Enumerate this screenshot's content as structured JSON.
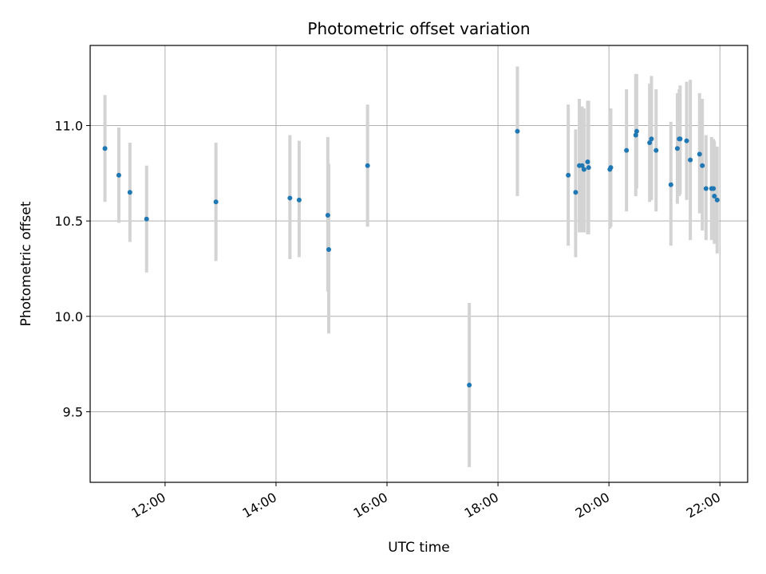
{
  "chart_data": {
    "type": "scatter",
    "title": "Photometric offset variation",
    "xlabel": "UTC time",
    "ylabel": "Photometric offset",
    "x_unit": "UTC hours",
    "xlim": [
      10.65,
      22.5
    ],
    "ylim": [
      9.13,
      11.42
    ],
    "x_ticks": [
      {
        "value": 12,
        "label": "12:00"
      },
      {
        "value": 14,
        "label": "14:00"
      },
      {
        "value": 16,
        "label": "16:00"
      },
      {
        "value": 18,
        "label": "18:00"
      },
      {
        "value": 20,
        "label": "20:00"
      },
      {
        "value": 22,
        "label": "22:00"
      }
    ],
    "y_ticks": [
      {
        "value": 9.5,
        "label": "9.5"
      },
      {
        "value": 10.0,
        "label": "10.0"
      },
      {
        "value": 10.5,
        "label": "10.5"
      },
      {
        "value": 11.0,
        "label": "11.0"
      }
    ],
    "grid": true,
    "colors": {
      "points": "#1f77b4",
      "error_bars": "#d3d3d3",
      "grid": "#b0b0b0"
    },
    "points": [
      {
        "time": "10:55",
        "y": 10.88,
        "low": 10.6,
        "high": 11.16
      },
      {
        "time": "11:10",
        "y": 10.74,
        "low": 10.49,
        "high": 10.99
      },
      {
        "time": "11:22",
        "y": 10.65,
        "low": 10.39,
        "high": 10.91
      },
      {
        "time": "11:40",
        "y": 10.51,
        "low": 10.23,
        "high": 10.79
      },
      {
        "time": "12:55",
        "y": 10.6,
        "low": 10.29,
        "high": 10.91
      },
      {
        "time": "14:15",
        "y": 10.62,
        "low": 10.3,
        "high": 10.95
      },
      {
        "time": "14:25",
        "y": 10.61,
        "low": 10.31,
        "high": 10.92
      },
      {
        "time": "14:56",
        "y": 10.53,
        "low": 10.13,
        "high": 10.94
      },
      {
        "time": "14:57",
        "y": 10.35,
        "low": 9.91,
        "high": 10.8
      },
      {
        "time": "15:39",
        "y": 10.79,
        "low": 10.47,
        "high": 11.11
      },
      {
        "time": "17:29",
        "y": 9.64,
        "low": 9.21,
        "high": 10.07
      },
      {
        "time": "18:21",
        "y": 10.97,
        "low": 10.63,
        "high": 11.31
      },
      {
        "time": "19:16",
        "y": 10.74,
        "low": 10.37,
        "high": 11.11
      },
      {
        "time": "19:24",
        "y": 10.65,
        "low": 10.31,
        "high": 10.98
      },
      {
        "time": "19:28",
        "y": 10.79,
        "low": 10.44,
        "high": 11.14
      },
      {
        "time": "19:31",
        "y": 10.79,
        "low": 10.44,
        "high": 11.1
      },
      {
        "time": "19:33",
        "y": 10.77,
        "low": 10.44,
        "high": 11.09
      },
      {
        "time": "19:37",
        "y": 10.81,
        "low": 10.43,
        "high": 11.13
      },
      {
        "time": "19:38",
        "y": 10.78,
        "low": 10.43,
        "high": 11.13
      },
      {
        "time": "20:01",
        "y": 10.77,
        "low": 10.46,
        "high": 11.08
      },
      {
        "time": "20:02",
        "y": 10.78,
        "low": 10.47,
        "high": 11.09
      },
      {
        "time": "20:19",
        "y": 10.87,
        "low": 10.55,
        "high": 11.19
      },
      {
        "time": "20:29",
        "y": 10.95,
        "low": 10.63,
        "high": 11.27
      },
      {
        "time": "20:30",
        "y": 10.97,
        "low": 10.67,
        "high": 11.27
      },
      {
        "time": "20:44",
        "y": 10.91,
        "low": 10.6,
        "high": 11.22
      },
      {
        "time": "20:46",
        "y": 10.93,
        "low": 10.61,
        "high": 11.26
      },
      {
        "time": "20:51",
        "y": 10.87,
        "low": 10.55,
        "high": 11.19
      },
      {
        "time": "21:07",
        "y": 10.69,
        "low": 10.37,
        "high": 11.02
      },
      {
        "time": "21:14",
        "y": 10.88,
        "low": 10.59,
        "high": 11.17
      },
      {
        "time": "21:16",
        "y": 10.93,
        "low": 10.63,
        "high": 11.19
      },
      {
        "time": "21:17",
        "y": 10.93,
        "low": 10.64,
        "high": 11.21
      },
      {
        "time": "21:24",
        "y": 10.92,
        "low": 10.61,
        "high": 11.23
      },
      {
        "time": "21:28",
        "y": 10.82,
        "low": 10.4,
        "high": 11.24
      },
      {
        "time": "21:38",
        "y": 10.85,
        "low": 10.54,
        "high": 11.17
      },
      {
        "time": "21:41",
        "y": 10.79,
        "low": 10.45,
        "high": 11.14
      },
      {
        "time": "21:45",
        "y": 10.67,
        "low": 10.4,
        "high": 10.95
      },
      {
        "time": "21:51",
        "y": 10.67,
        "low": 10.4,
        "high": 10.94
      },
      {
        "time": "21:53",
        "y": 10.67,
        "low": 10.41,
        "high": 10.93
      },
      {
        "time": "21:54",
        "y": 10.63,
        "low": 10.38,
        "high": 10.92
      },
      {
        "time": "21:57",
        "y": 10.61,
        "low": 10.33,
        "high": 10.89
      }
    ]
  }
}
